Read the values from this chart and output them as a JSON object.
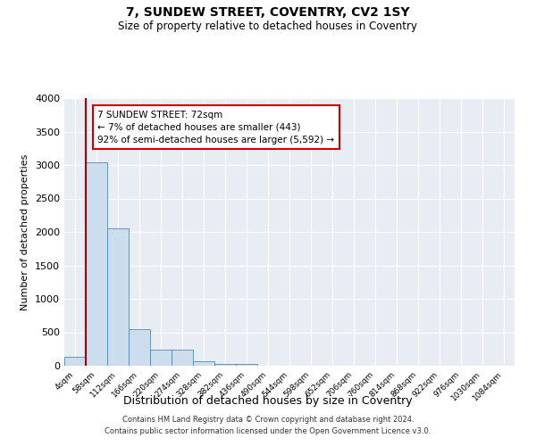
{
  "title": "7, SUNDEW STREET, COVENTRY, CV2 1SY",
  "subtitle": "Size of property relative to detached houses in Coventry",
  "xlabel": "Distribution of detached houses by size in Coventry",
  "ylabel": "Number of detached properties",
  "bin_labels": [
    "4sqm",
    "58sqm",
    "112sqm",
    "166sqm",
    "220sqm",
    "274sqm",
    "328sqm",
    "382sqm",
    "436sqm",
    "490sqm",
    "544sqm",
    "598sqm",
    "652sqm",
    "706sqm",
    "760sqm",
    "814sqm",
    "868sqm",
    "922sqm",
    "976sqm",
    "1030sqm",
    "1084sqm"
  ],
  "bar_heights": [
    130,
    3040,
    2060,
    545,
    240,
    240,
    65,
    30,
    30,
    0,
    0,
    0,
    0,
    0,
    0,
    0,
    0,
    0,
    0,
    0,
    0
  ],
  "bar_color": "#ccdded",
  "bar_edge_color": "#5588aa",
  "marker_line_color": "#aa0000",
  "annotation_text": "7 SUNDEW STREET: 72sqm\n← 7% of detached houses are smaller (443)\n92% of semi-detached houses are larger (5,592) →",
  "annotation_box_color": "#ffffff",
  "annotation_box_edge": "#cc0000",
  "ylim": [
    0,
    4000
  ],
  "yticks": [
    0,
    500,
    1000,
    1500,
    2000,
    2500,
    3000,
    3500,
    4000
  ],
  "background_color": "#e8edf4",
  "grid_color": "#ffffff",
  "footer_line1": "Contains HM Land Registry data © Crown copyright and database right 2024.",
  "footer_line2": "Contains public sector information licensed under the Open Government Licence v3.0."
}
